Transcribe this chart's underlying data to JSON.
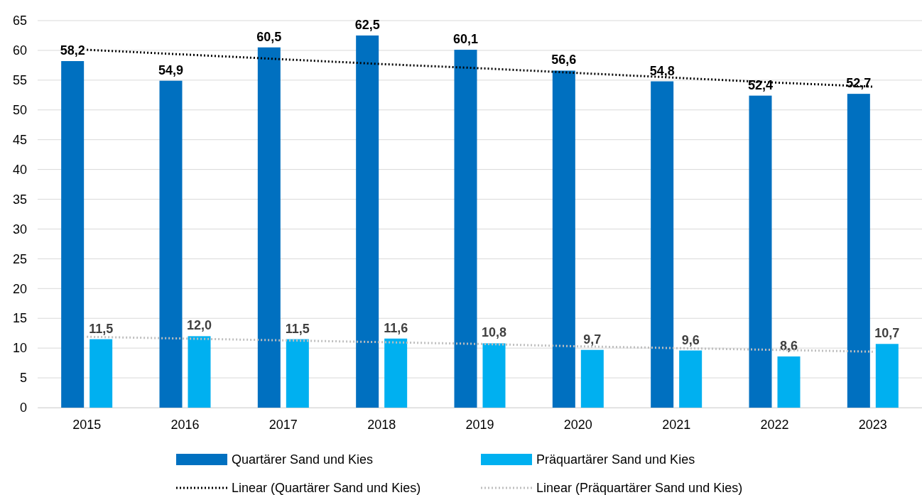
{
  "chart_data": {
    "type": "bar",
    "categories": [
      "2015",
      "2016",
      "2017",
      "2018",
      "2019",
      "2020",
      "2021",
      "2022",
      "2023"
    ],
    "series": [
      {
        "name": "Quartärer Sand und Kies",
        "color": "#0070c0",
        "values": [
          58.2,
          54.9,
          60.5,
          62.5,
          60.1,
          56.6,
          54.8,
          52.4,
          52.7
        ],
        "value_labels": [
          "58,2",
          "54,9",
          "60,5",
          "62,5",
          "60,1",
          "56,6",
          "54,8",
          "52,4",
          "52,7"
        ]
      },
      {
        "name": "Präquartärer Sand und Kies",
        "color": "#00b0f0",
        "values": [
          11.5,
          12.0,
          11.5,
          11.6,
          10.8,
          9.7,
          9.6,
          8.6,
          10.7
        ],
        "value_labels": [
          "11,5",
          "12,0",
          "11,5",
          "11,6",
          "10,8",
          "9,7",
          "9,6",
          "8,6",
          "10,7"
        ]
      },
      {
        "name": "Linear (Quartärer Sand und Kies)",
        "type": "line",
        "color": "#000000",
        "line_style": "dotted",
        "values": [
          60.1,
          59.3,
          58.5,
          57.7,
          57.0,
          56.2,
          55.4,
          54.6,
          53.9
        ]
      },
      {
        "name": "Linear (Präquartärer Sand und Kies)",
        "type": "line",
        "color": "#bfbfbf",
        "line_style": "dotted",
        "values": [
          11.9,
          11.6,
          11.3,
          11.0,
          10.7,
          10.3,
          10.0,
          9.7,
          9.4
        ]
      }
    ],
    "ylim": [
      0,
      65
    ],
    "yticks": [
      0,
      5,
      10,
      15,
      20,
      25,
      30,
      35,
      40,
      45,
      50,
      55,
      60,
      65
    ],
    "grid": "y",
    "legend": "bottom",
    "marker": "none"
  }
}
